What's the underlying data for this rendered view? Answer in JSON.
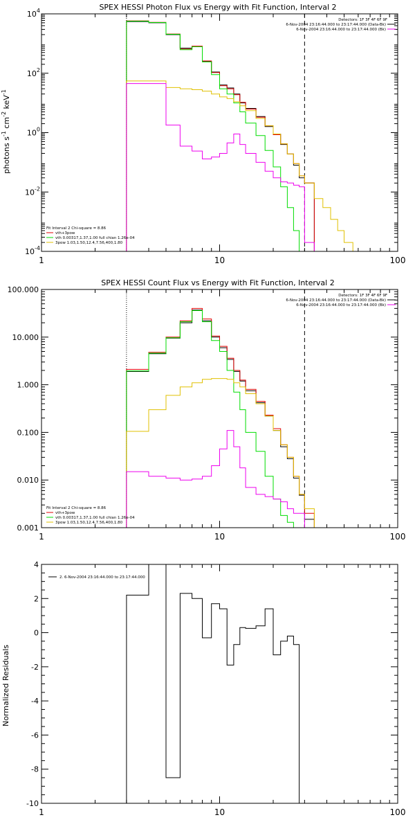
{
  "chart_data": [
    {
      "type": "line",
      "title": "SPEX HESSI Photon Flux vs Energy with Fit Function, Interval 2",
      "ylabel_parts": [
        "photons s",
        "-1",
        " cm",
        "-2",
        " keV",
        "-1"
      ],
      "xscale": "log",
      "yscale": "log",
      "xlim": [
        1,
        100
      ],
      "ylim": [
        0.0001,
        10000
      ],
      "x_ticks": [
        {
          "v": 1,
          "label": "1"
        },
        {
          "v": 10,
          "label": "10"
        },
        {
          "v": 100,
          "label": "100"
        }
      ],
      "y_ticks": [
        {
          "v": 0.0001,
          "base": "10",
          "exp": "-4"
        },
        {
          "v": 0.01,
          "base": "10",
          "exp": "-2"
        },
        {
          "v": 1,
          "base": "10",
          "exp": "0"
        },
        {
          "v": 100,
          "base": "10",
          "exp": "2"
        },
        {
          "v": 10000,
          "base": "10",
          "exp": "4"
        }
      ],
      "legend_top": [
        "Detectors: 1F 3F 4F 6F 9F",
        "6-Nov-2004 23:16:44.000 to 23:17:44.000 (Data-Bk)",
        "6-Nov-2004 23:16:44.000 to 23:17:44.000 (Bk)"
      ],
      "legend_bottom": [
        "Fit Interval 2   Chi-square = 8.86",
        "vth+3pow",
        "vth 0.00317,1.37,1.00  full chian 1.26e-04",
        "3pow 1.03,1.50,12.4,7.56,400,1.80"
      ],
      "vlines": [
        {
          "x": 3,
          "style": "dotted"
        },
        {
          "x": 30,
          "style": "dashed"
        }
      ],
      "edges": [
        3,
        4,
        5,
        6,
        7,
        8,
        9,
        10,
        11,
        12,
        13,
        14,
        16,
        18,
        20,
        22,
        24,
        26,
        28,
        30,
        34,
        38,
        42,
        46,
        50,
        56
      ],
      "series": [
        {
          "name": "Data-Bk",
          "color": "#000000",
          "values": [
            5500,
            5000,
            2000,
            700,
            800,
            250,
            110,
            40,
            32,
            20,
            10,
            6.5,
            3.5,
            1.6,
            0.9,
            0.4,
            0.19,
            0.08,
            0.03,
            0.02
          ]
        },
        {
          "name": "vth+3pow",
          "color": "#e00000",
          "values": [
            5800,
            5200,
            2100,
            650,
            820,
            260,
            105,
            38,
            30,
            19,
            10.5,
            6.2,
            3.3,
            1.7,
            0.85,
            0.42,
            0.19,
            0.09,
            0.035,
            0.02
          ]
        },
        {
          "name": "vth",
          "color": "#00dd00",
          "values": [
            5700,
            5100,
            2050,
            620,
            780,
            240,
            90,
            30,
            20,
            10,
            5,
            2.1,
            0.8,
            0.25,
            0.07,
            0.015,
            0.003,
            0.0005,
            0.0001,
            3e-05
          ]
        },
        {
          "name": "3pow",
          "color": "#e0c000",
          "values": [
            55,
            55,
            33,
            30,
            28,
            25,
            20,
            16,
            14,
            11,
            8,
            5.5,
            3,
            1.7,
            0.9,
            0.42,
            0.19,
            0.09,
            0.035,
            0.02,
            0.006,
            0.003,
            0.0012,
            0.0005,
            0.0002
          ]
        },
        {
          "name": "Bk",
          "color": "#ee00ee",
          "values": [
            45,
            45,
            1.8,
            0.35,
            0.24,
            0.13,
            0.15,
            0.2,
            0.45,
            0.9,
            0.4,
            0.2,
            0.1,
            0.05,
            0.03,
            0.022,
            0.02,
            0.017,
            0.015,
            0.0002
          ]
        }
      ]
    },
    {
      "type": "line",
      "title": "SPEX HESSI Count Flux vs Energy with Fit Function, Interval 2",
      "xscale": "log",
      "yscale": "log",
      "xlim": [
        1,
        100
      ],
      "ylim": [
        0.001,
        100
      ],
      "x_ticks": [
        {
          "v": 1,
          "label": "1"
        },
        {
          "v": 10,
          "label": "10"
        },
        {
          "v": 100,
          "label": "100"
        }
      ],
      "y_ticks": [
        {
          "v": 0.001,
          "label": "0.001"
        },
        {
          "v": 0.01,
          "label": "0.010"
        },
        {
          "v": 0.1,
          "label": "0.100"
        },
        {
          "v": 1,
          "label": "1.000"
        },
        {
          "v": 10,
          "label": "10.000"
        },
        {
          "v": 100,
          "label": "100.000"
        }
      ],
      "legend_top": [
        "Detectors: 1F 3F 4F 6F 9F",
        "6-Nov-2004 23:16:44.000 to 23:17:44.000 (Data-Bk)",
        "6-Nov-2004 23:16:44.000 to 23:17:44.000 (Bk)"
      ],
      "legend_bottom": [
        "Fit Interval 2   Chi-square = 8.86",
        "vth+3pow",
        "vth 0.00317,1.37,1.00  full chian 1.26e-04",
        "3pow 1.03,1.50,12.4,7.56,400,1.80"
      ],
      "vlines": [
        {
          "x": 3,
          "style": "dotted"
        },
        {
          "x": 30,
          "style": "dashed"
        }
      ],
      "edges": [
        3,
        4,
        5,
        6,
        7,
        8,
        9,
        10,
        11,
        12,
        13,
        14,
        16,
        18,
        20,
        22,
        24,
        26,
        28,
        30,
        34
      ],
      "series": [
        {
          "name": "Data-Bk",
          "color": "#000000",
          "values": [
            1.9,
            4.5,
            9.5,
            20,
            37,
            22,
            10,
            6,
            3.4,
            1.9,
            1.2,
            0.75,
            0.42,
            0.22,
            0.11,
            0.05,
            0.028,
            0.011,
            0.0048,
            0.0015
          ]
        },
        {
          "name": "vth+3pow",
          "color": "#e00000",
          "values": [
            2.1,
            4.8,
            10,
            22,
            40,
            24,
            10.5,
            6.4,
            3.6,
            2.0,
            1.25,
            0.8,
            0.45,
            0.23,
            0.12,
            0.055,
            0.03,
            0.012,
            0.005,
            0.002
          ]
        },
        {
          "name": "vth",
          "color": "#00dd00",
          "values": [
            1.95,
            4.6,
            9.7,
            21,
            36,
            21,
            8.5,
            5,
            2,
            0.7,
            0.3,
            0.1,
            0.04,
            0.012,
            0.004,
            0.0018,
            0.0013,
            0.001,
            0.0009
          ]
        },
        {
          "name": "3pow",
          "color": "#e0c000",
          "values": [
            0.105,
            0.3,
            0.6,
            0.9,
            1.1,
            1.3,
            1.35,
            1.35,
            1.3,
            1.1,
            0.9,
            0.65,
            0.4,
            0.22,
            0.11,
            0.055,
            0.03,
            0.012,
            0.005,
            0.0025
          ]
        },
        {
          "name": "Bk",
          "color": "#ee00ee",
          "values": [
            0.015,
            0.012,
            0.011,
            0.01,
            0.0105,
            0.012,
            0.02,
            0.045,
            0.11,
            0.05,
            0.018,
            0.007,
            0.005,
            0.0045,
            0.004,
            0.0035,
            0.0025,
            0.002,
            0.002,
            0.001
          ]
        }
      ]
    },
    {
      "type": "line",
      "ylabel": "Normalized Residuals",
      "xscale": "log",
      "yscale": "linear",
      "xlim": [
        1,
        100
      ],
      "ylim": [
        -10,
        4
      ],
      "x_ticks": [
        {
          "v": 1,
          "label": "1"
        },
        {
          "v": 10,
          "label": "10"
        },
        {
          "v": 100,
          "label": "100"
        }
      ],
      "y_ticks": [
        {
          "v": 4,
          "label": "4"
        },
        {
          "v": 2,
          "label": "2"
        },
        {
          "v": 0,
          "label": "0"
        },
        {
          "v": -2,
          "label": "-2"
        },
        {
          "v": -4,
          "label": "-4"
        },
        {
          "v": -6,
          "label": "-6"
        },
        {
          "v": -8,
          "label": "-8"
        },
        {
          "v": -10,
          "label": "-10"
        }
      ],
      "legend": [
        "2.  6-Nov-2004 23:16:44.000 to 23:17:44.000"
      ],
      "edges": [
        3,
        4,
        5,
        6,
        7,
        8,
        9,
        10,
        11,
        12,
        13,
        14,
        16,
        18,
        20,
        22,
        24,
        26,
        28,
        30
      ],
      "series": [
        {
          "name": "2.  6-Nov-2004 23:16:44.000 to 23:17:44.000",
          "color": "#000000",
          "values": [
            2.2,
            4.0,
            -8.5,
            2.3,
            2.0,
            -0.3,
            1.7,
            1.4,
            -1.9,
            -0.7,
            0.3,
            0.25,
            0.4,
            1.4,
            -1.3,
            -0.5,
            -0.2,
            -0.7
          ]
        }
      ]
    }
  ]
}
